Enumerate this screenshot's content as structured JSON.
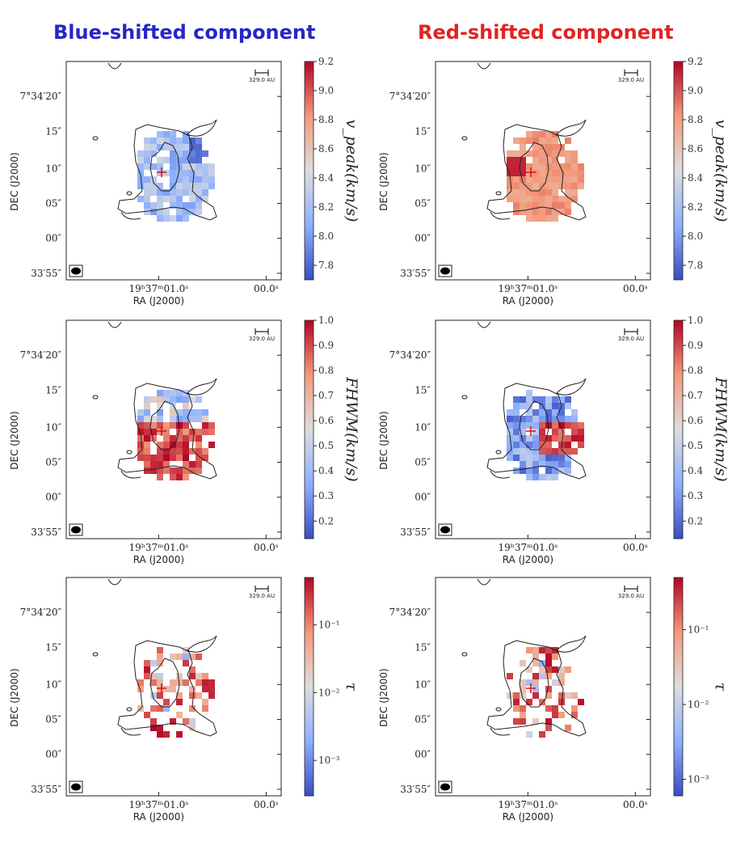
{
  "columns": [
    {
      "title": "Blue-shifted component",
      "color": "#2626c9"
    },
    {
      "title": "Red-shifted component",
      "color": "#e02424"
    }
  ],
  "axes_text": {
    "xlabel": "RA (J2000)",
    "ylabel": "DEC (J2000)",
    "ytick_labels": [
      "7°34′20″",
      "15″",
      "10″",
      "05″",
      "00″",
      "33′55″"
    ],
    "xtick_labels": [
      "19ʰ37ᵐ01.0ˢ",
      "00.0ˢ"
    ],
    "scalebar_label": "329.0 AU"
  },
  "colormap": {
    "low": "#3a4cc0",
    "mid": "#dddddd",
    "high": "#b40426"
  },
  "chart_data": [
    {
      "type": "heatmap",
      "panel": "Blue-shifted v_peak",
      "colorbar_label": "v_peak(km/s)",
      "colorbar_ticks": [
        "9.2",
        "9.0",
        "8.8",
        "8.6",
        "8.4",
        "8.2",
        "8.0",
        "7.8"
      ],
      "clim": [
        7.7,
        9.2
      ],
      "scale": "linear"
    },
    {
      "type": "heatmap",
      "panel": "Red-shifted v_peak",
      "colorbar_label": "v_peak(km/s)",
      "colorbar_ticks": [
        "9.2",
        "9.0",
        "8.8",
        "8.6",
        "8.4",
        "8.2",
        "8.0",
        "7.8"
      ],
      "clim": [
        7.7,
        9.2
      ],
      "scale": "linear"
    },
    {
      "type": "heatmap",
      "panel": "Blue-shifted FWHM",
      "colorbar_label": "FHWM(km/s)",
      "colorbar_ticks": [
        "1.0",
        "0.9",
        "0.8",
        "0.7",
        "0.6",
        "0.5",
        "0.4",
        "0.3",
        "0.2"
      ],
      "clim": [
        0.13,
        1.0
      ],
      "scale": "linear"
    },
    {
      "type": "heatmap",
      "panel": "Red-shifted FWHM",
      "colorbar_label": "FHWM(km/s)",
      "colorbar_ticks": [
        "1.0",
        "0.9",
        "0.8",
        "0.7",
        "0.6",
        "0.5",
        "0.4",
        "0.3",
        "0.2"
      ],
      "clim": [
        0.13,
        1.0
      ],
      "scale": "linear"
    },
    {
      "type": "heatmap",
      "panel": "Blue-shifted tau",
      "colorbar_label": "τ",
      "colorbar_ticks": [
        "10⁻¹",
        "10⁻²",
        "10⁻³"
      ],
      "clim": [
        0.0003,
        0.5
      ],
      "scale": "log"
    },
    {
      "type": "heatmap",
      "panel": "Red-shifted tau",
      "colorbar_label": "τ",
      "colorbar_ticks": [
        "10⁻¹",
        "10⁻²",
        "10⁻³"
      ],
      "clim": [
        0.0006,
        0.5
      ],
      "scale": "log"
    }
  ]
}
